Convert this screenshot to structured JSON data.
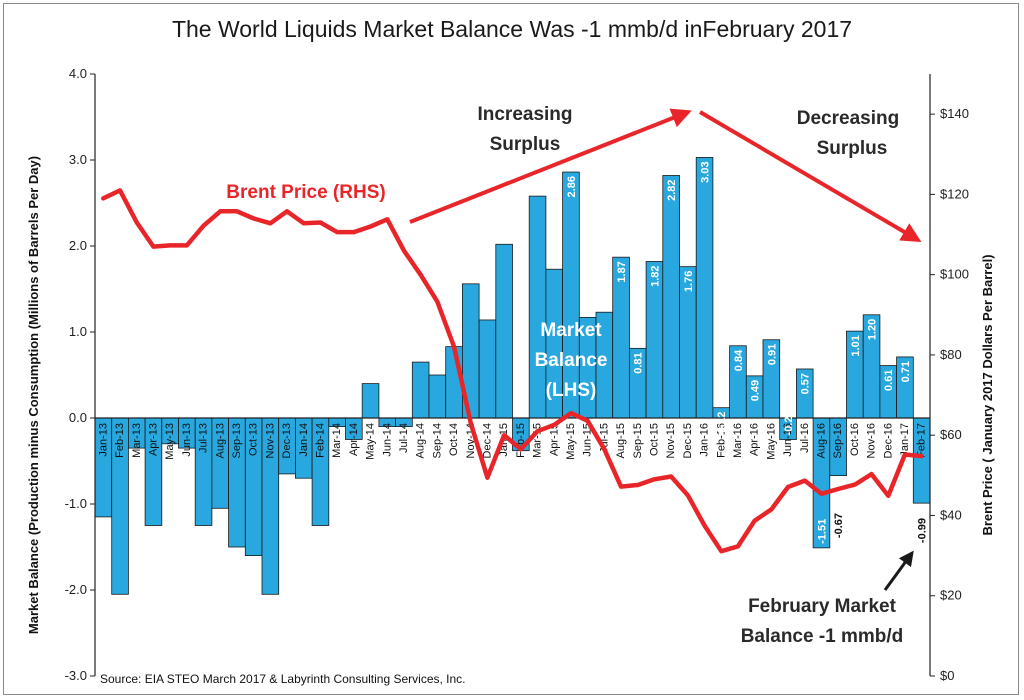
{
  "chart_data": {
    "type": "bar",
    "title": "The World Liquids Market Balance Was -1 mmb/d inFebruary 2017",
    "ylabel": "Market Balance (Production minus Consumption (Millions of Barrels Per Day)",
    "y2label": "Brent Price ( January 2017 Dollars  Per Barrel)",
    "ylim": [
      -3.0,
      4.0
    ],
    "y2lim": [
      0,
      150
    ],
    "yticks": [
      "-3.0",
      "-2.0",
      "-1.0",
      "0.0",
      "1.0",
      "2.0",
      "3.0",
      "4.0"
    ],
    "y2ticks": [
      "$0",
      "$20",
      "$40",
      "$60",
      "$80",
      "$100",
      "$120",
      "$140"
    ],
    "grid": false,
    "categories": [
      "Jan-13",
      "Feb-13",
      "Mar-13",
      "Apr-13",
      "May-13",
      "Jun-13",
      "Jul-13",
      "Aug-13",
      "Sep-13",
      "Oct-13",
      "Nov-13",
      "Dec-13",
      "Jan-14",
      "Feb-14",
      "Mar-14",
      "Apr-14",
      "May-14",
      "Jun-14",
      "Jul-14",
      "Aug-14",
      "Sep-14",
      "Oct-14",
      "Nov-14",
      "Dec-14",
      "Jan-15",
      "Feb-15",
      "Mar-15",
      "Apr-15",
      "May-15",
      "Jun-15",
      "Jul-15",
      "Aug-15",
      "Sep-15",
      "Oct-15",
      "Nov-15",
      "Dec-15",
      "Jan-16",
      "Feb-16",
      "Mar-16",
      "Apr-16",
      "May-16",
      "Jun-16",
      "Jul-16",
      "Aug-16",
      "Sep-16",
      "Oct-16",
      "Nov-16",
      "Dec-16",
      "Jan-17",
      "Feb-17"
    ],
    "series": [
      {
        "name": "Market Balance (LHS)",
        "type": "bar",
        "color": "#29a8e0",
        "values": [
          -1.15,
          -2.05,
          -0.35,
          -1.25,
          -0.3,
          -0.35,
          -1.25,
          -1.05,
          -1.5,
          -1.6,
          -2.05,
          -0.65,
          -0.7,
          -1.25,
          -0.1,
          -0.25,
          0.4,
          -0.1,
          -0.1,
          0.65,
          0.5,
          0.83,
          1.56,
          1.14,
          2.02,
          -0.38,
          2.58,
          1.73,
          2.86,
          1.17,
          1.23,
          1.87,
          0.81,
          1.82,
          2.82,
          1.76,
          3.03,
          0.12,
          0.84,
          0.49,
          0.91,
          -0.25,
          0.57,
          -1.51,
          -0.67,
          1.01,
          1.2,
          0.61,
          0.71,
          -0.99
        ],
        "data_labels": {
          "28": "2.86",
          "31": "1.87",
          "32": "0.81",
          "33": "1.82",
          "34": "2.82",
          "35": "1.76",
          "36": "3.03",
          "37": "0.12",
          "38": "0.84",
          "39": "0.49",
          "40": "0.91",
          "41": "-0.25",
          "42": "0.57",
          "43": "-1.51",
          "44": "-0.67",
          "45": "1.01",
          "46": "1.20",
          "47": "0.61",
          "48": "0.71",
          "49": "-0.99"
        }
      },
      {
        "name": "Brent Price (RHS)",
        "type": "line",
        "axis": "right",
        "color": "#e8262a",
        "values": [
          119,
          121,
          113,
          107,
          107.3,
          107.3,
          112.2,
          115.8,
          115.8,
          114,
          112.8,
          115.8,
          112.8,
          113,
          110.6,
          110.6,
          112,
          113.8,
          106,
          100,
          93.3,
          82,
          63,
          49.4,
          60,
          56.5,
          61,
          62.6,
          65.5,
          63.6,
          56.5,
          47.2,
          47.6,
          49,
          49.7,
          45,
          37.5,
          31.1,
          32.3,
          38.7,
          41.5,
          47.1,
          48.7,
          45.4,
          46.6,
          47.7,
          50.3,
          44.9,
          55.2,
          54.8
        ]
      }
    ]
  },
  "annotations": {
    "increasing": [
      "Increasing",
      "Surplus"
    ],
    "decreasing": [
      "Decreasing",
      "Surplus"
    ],
    "brent": "Brent Price (RHS)",
    "market_balance": [
      "Market",
      "Balance",
      "(LHS)"
    ],
    "february": [
      "February Market",
      "Balance -1 mmb/d"
    ]
  },
  "source": "Source: EIA STEO March 2017 & Labyrinth Consulting Services, Inc.",
  "colors": {
    "bar_fill": "#29a8e0",
    "bar_stroke": "#1a1a1a",
    "line": "#e8262a",
    "annotation_dark": "#2a2a2a"
  }
}
